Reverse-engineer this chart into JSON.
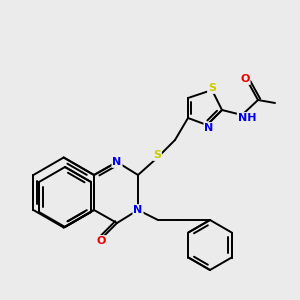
{
  "background_color": "#ebebeb",
  "bond_color": "#000000",
  "atom_colors": {
    "N": "#0000ee",
    "O": "#ee0000",
    "S": "#cccc00",
    "C": "#000000",
    "H": "#1a8a8a"
  },
  "figure_size": [
    3.0,
    3.0
  ],
  "dpi": 100
}
